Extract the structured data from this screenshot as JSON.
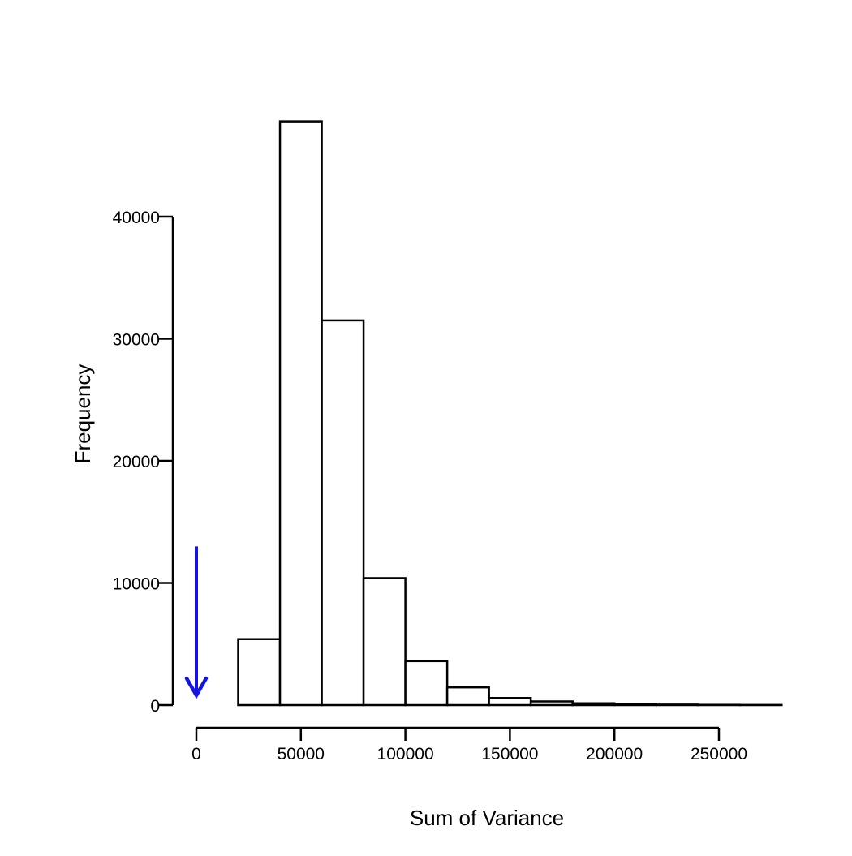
{
  "chart_data": {
    "type": "bar",
    "title": "",
    "xlabel": "Sum of Variance",
    "ylabel": "Frequency",
    "bin_edges": [
      20000,
      40000,
      60000,
      80000,
      100000,
      120000,
      140000,
      160000,
      180000,
      200000,
      220000,
      240000,
      260000,
      280000
    ],
    "values": [
      5400,
      47800,
      31500,
      10400,
      3600,
      1450,
      580,
      300,
      150,
      80,
      40,
      20,
      10
    ],
    "xlim": [
      0,
      280000
    ],
    "ylim": [
      0,
      48000
    ],
    "x_ticks": [
      0,
      50000,
      100000,
      150000,
      200000,
      250000
    ],
    "x_tick_labels": [
      "0",
      "50000",
      "100000",
      "150000",
      "200000",
      "250000"
    ],
    "y_ticks": [
      0,
      10000,
      20000,
      30000,
      40000
    ],
    "y_tick_labels": [
      "0",
      "10000",
      "20000",
      "30000",
      "40000"
    ],
    "grid": false,
    "bar_fill": "#ffffff",
    "bar_stroke": "#000000",
    "annotation": {
      "type": "arrow",
      "direction": "down",
      "x": 0,
      "y_from": 13000,
      "y_to": 800,
      "color": "#1414e0"
    }
  }
}
